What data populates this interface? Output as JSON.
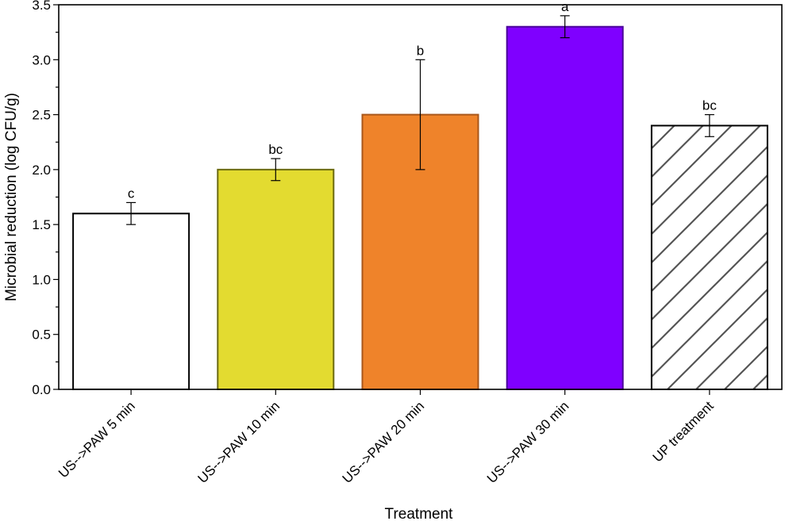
{
  "chart_data": {
    "type": "bar",
    "title": "",
    "xlabel": "Treatment",
    "ylabel": "Microbial reduction (log CFU/g)",
    "ylim": [
      0,
      3.5
    ],
    "yticks": [
      0.0,
      0.5,
      1.0,
      1.5,
      2.0,
      2.5,
      3.0,
      3.5
    ],
    "ytick_labels": [
      "0.0",
      "0.5",
      "1.0",
      "1.5",
      "2.0",
      "2.5",
      "3.0",
      "3.5"
    ],
    "categories": [
      "US-->PAW 5 min",
      "US-->PAW 10 min",
      "US-->PAW 20 min",
      "US-->PAW 30 min",
      "UP treatment"
    ],
    "values": [
      1.6,
      2.0,
      2.5,
      3.3,
      2.4
    ],
    "errors": [
      0.1,
      0.1,
      0.5,
      0.1,
      0.1
    ],
    "significance_letters": [
      "c",
      "bc",
      "b",
      "a",
      "bc"
    ],
    "bar_fills": [
      "#ffffff",
      "#e3db30",
      "#ef832a",
      "#7f00ff",
      "hatched"
    ],
    "bar_edge_colors": [
      "#000000",
      "#6b6a10",
      "#a8561a",
      "#4a0099",
      "#000000"
    ],
    "hatch_color": "#555555",
    "grid": false,
    "legend": "none"
  }
}
